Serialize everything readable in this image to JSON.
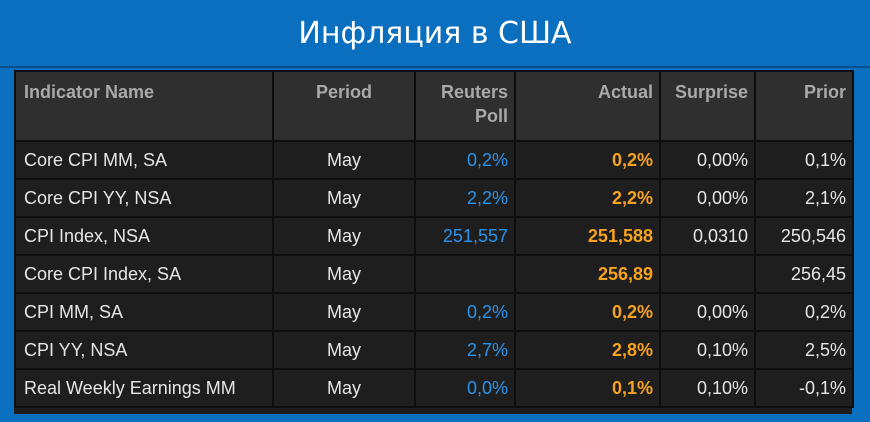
{
  "header": {
    "title": "Инфляция в США"
  },
  "table": {
    "columns": [
      "Indicator Name",
      "Period",
      "Reuters Poll",
      "Actual",
      "Surprise",
      "Prior"
    ],
    "rows": [
      [
        "Core CPI MM, SA",
        "May",
        "0,2%",
        "0,2%",
        "0,00%",
        "0,1%"
      ],
      [
        "Core CPI YY, NSA",
        "May",
        "2,2%",
        "2,2%",
        "0,00%",
        "2,1%"
      ],
      [
        "CPI Index, NSA",
        "May",
        "251,557",
        "251,588",
        "0,0310",
        "250,546"
      ],
      [
        "Core CPI Index, SA",
        "May",
        null,
        "256,89",
        null,
        "256,45"
      ],
      [
        "CPI MM, SA",
        "May",
        "0,2%",
        "0,2%",
        "0,00%",
        "0,2%"
      ],
      [
        "CPI YY, NSA",
        "May",
        "2,7%",
        "2,8%",
        "0,10%",
        "2,5%"
      ],
      [
        "Real Weekly Earnings MM",
        "May",
        "0,0%",
        "0,1%",
        "0,10%",
        "-0,1%"
      ]
    ]
  }
}
